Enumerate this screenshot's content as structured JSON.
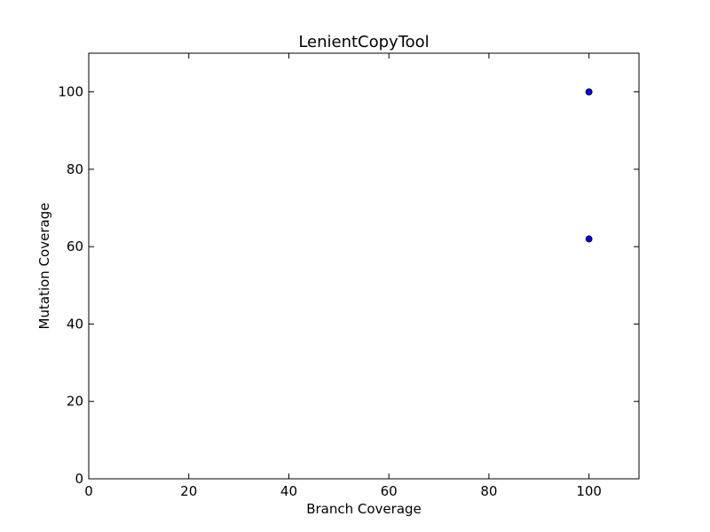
{
  "chart_data": {
    "type": "scatter",
    "title": "LenientCopyTool",
    "xlabel": "Branch Coverage",
    "ylabel": "Mutation Coverage",
    "xlim": [
      0,
      110
    ],
    "ylim": [
      0,
      110
    ],
    "xticks": [
      0,
      20,
      40,
      60,
      80,
      100
    ],
    "yticks": [
      0,
      20,
      40,
      60,
      80,
      100
    ],
    "grid": false,
    "series": [
      {
        "color": "#0000ff",
        "edge_color": "#000000",
        "points": [
          {
            "x": 100,
            "y": 100
          },
          {
            "x": 100,
            "y": 100
          },
          {
            "x": 100,
            "y": 62
          }
        ]
      }
    ]
  }
}
